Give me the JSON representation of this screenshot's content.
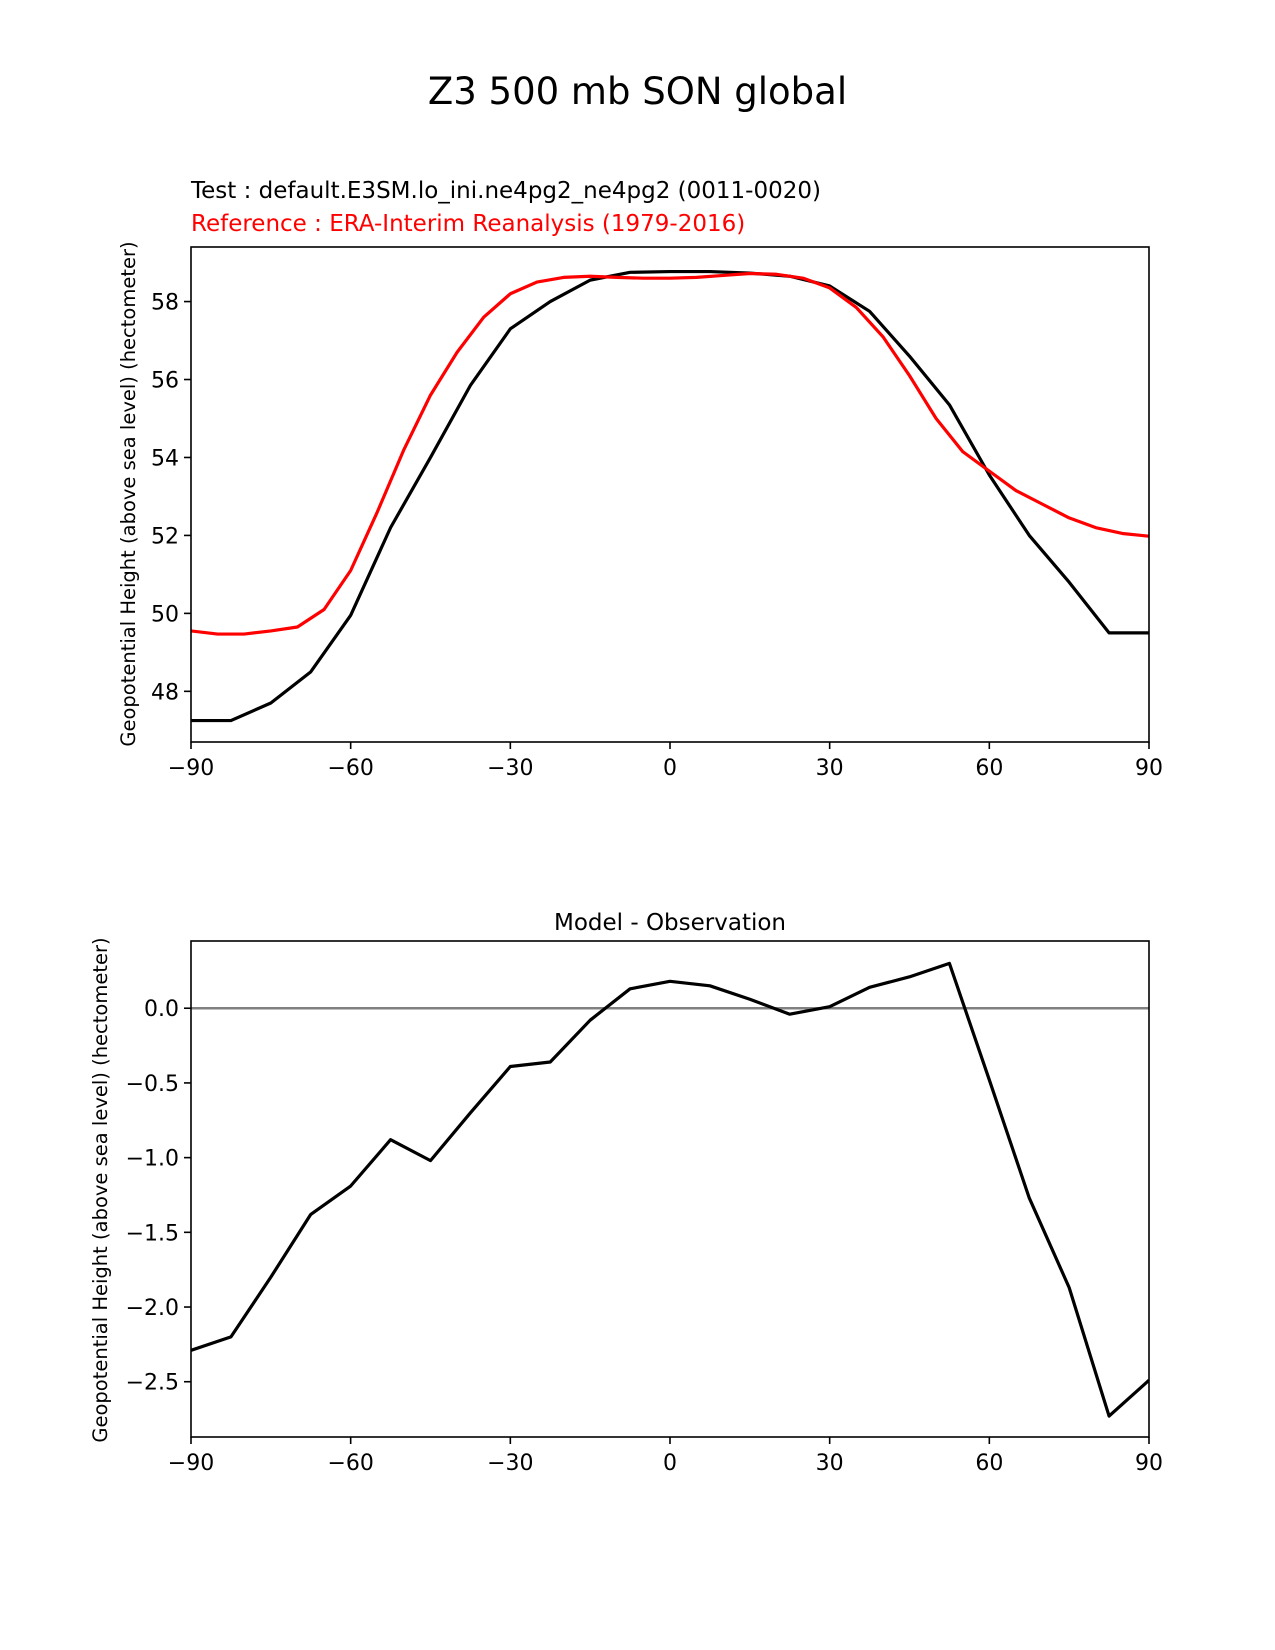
{
  "figure": {
    "title": "Z3 500 mb SON global"
  },
  "chart_data": [
    {
      "type": "line",
      "title_test": "Test : default.E3SM.lo_ini.ne4pg2_ne4pg2 (0011-0020)",
      "title_reference": "Reference : ERA-Interim Reanalysis (1979-2016)",
      "xlabel": "",
      "ylabel": "Geopotential Height (above sea level) (hectometer)",
      "xlim": [
        -90,
        90
      ],
      "ylim": [
        46.7,
        59.4
      ],
      "xticks": [
        -90,
        -60,
        -30,
        0,
        30,
        60,
        90
      ],
      "xtick_labels": [
        "−90",
        "−60",
        "−30",
        "0",
        "30",
        "60",
        "90"
      ],
      "yticks": [
        48,
        50,
        52,
        54,
        56,
        58
      ],
      "ytick_labels": [
        "48",
        "50",
        "52",
        "54",
        "56",
        "58"
      ],
      "grid": false,
      "series": [
        {
          "color": "#000000",
          "x": [
            -90,
            -82.5,
            -75,
            -67.5,
            -60,
            -52.5,
            -45,
            -37.5,
            -30,
            -22.5,
            -15,
            -7.5,
            0,
            7.5,
            15,
            22.5,
            30,
            37.5,
            45,
            52.5,
            60,
            67.5,
            75,
            82.5,
            90
          ],
          "y": [
            47.25,
            47.25,
            47.7,
            48.5,
            49.95,
            52.2,
            54.0,
            55.85,
            57.3,
            58.0,
            58.55,
            58.75,
            58.77,
            58.77,
            58.73,
            58.65,
            58.4,
            57.75,
            56.6,
            55.35,
            53.55,
            52.0,
            50.8,
            49.5,
            49.5
          ]
        },
        {
          "color": "#ff0000",
          "x": [
            -90,
            -85,
            -80,
            -75,
            -70,
            -65,
            -60,
            -55,
            -50,
            -45,
            -40,
            -35,
            -30,
            -25,
            -20,
            -15,
            -10,
            -5,
            0,
            5,
            10,
            15,
            20,
            25,
            30,
            35,
            40,
            45,
            50,
            55,
            60,
            65,
            70,
            75,
            80,
            85,
            90
          ],
          "y": [
            49.55,
            49.47,
            49.47,
            49.55,
            49.65,
            50.1,
            51.1,
            52.6,
            54.2,
            55.6,
            56.7,
            57.6,
            58.2,
            58.5,
            58.62,
            58.65,
            58.62,
            58.6,
            58.6,
            58.62,
            58.67,
            58.72,
            58.7,
            58.6,
            58.35,
            57.85,
            57.1,
            56.1,
            55.0,
            54.15,
            53.65,
            53.15,
            52.8,
            52.45,
            52.2,
            52.05,
            51.98
          ]
        }
      ]
    },
    {
      "type": "line",
      "title": "Model - Observation",
      "xlabel": "",
      "ylabel": "Geopotential Height (above sea level) (hectometer)",
      "xlim": [
        -90,
        90
      ],
      "ylim": [
        -2.87,
        0.45
      ],
      "xticks": [
        -90,
        -60,
        -30,
        0,
        30,
        60,
        90
      ],
      "xtick_labels": [
        "−90",
        "−60",
        "−30",
        "0",
        "30",
        "60",
        "90"
      ],
      "yticks": [
        0.0,
        -0.5,
        -1.0,
        -1.5,
        -2.0,
        -2.5
      ],
      "ytick_labels": [
        "0.0",
        "−0.5",
        "−1.0",
        "−1.5",
        "−2.0",
        "−2.5"
      ],
      "grid": false,
      "zero_line_color": "#808080",
      "series": [
        {
          "color": "#000000",
          "x": [
            -90,
            -82.5,
            -75,
            -67.5,
            -60,
            -52.5,
            -45,
            -37.5,
            -30,
            -22.5,
            -15,
            -7.5,
            0,
            7.5,
            15,
            22.5,
            30,
            37.5,
            45,
            52.5,
            60,
            67.5,
            75,
            82.5,
            90
          ],
          "y": [
            -2.29,
            -2.2,
            -1.8,
            -1.38,
            -1.19,
            -0.88,
            -1.02,
            -0.7,
            -0.39,
            -0.36,
            -0.08,
            0.13,
            0.18,
            0.15,
            0.06,
            -0.04,
            0.01,
            0.14,
            0.21,
            0.3,
            -0.48,
            -1.27,
            -1.87,
            -2.73,
            -2.49
          ]
        }
      ]
    }
  ]
}
